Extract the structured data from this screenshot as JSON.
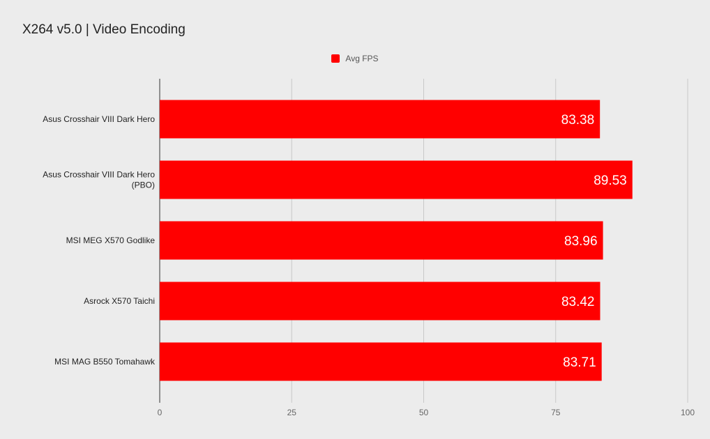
{
  "chart_data": {
    "type": "bar",
    "orientation": "horizontal",
    "title": "X264 v5.0 | Video Encoding",
    "categories": [
      [
        "Asus Crosshair VIII Dark Hero"
      ],
      [
        "Asus Crosshair VIII Dark Hero",
        "(PBO)"
      ],
      [
        "MSI MEG X570 Godlike"
      ],
      [
        "Asrock X570 Taichi"
      ],
      [
        "MSI MAG B550 Tomahawk"
      ]
    ],
    "series": [
      {
        "name": "Avg FPS",
        "color": "#ff0000",
        "values": [
          83.38,
          89.53,
          83.96,
          83.42,
          83.71
        ],
        "value_labels": [
          "83.38",
          "89.53",
          "83.96",
          "83.42",
          "83.71"
        ]
      }
    ],
    "xlim": [
      0,
      100
    ],
    "xticks": [
      0,
      25,
      50,
      75,
      100
    ],
    "xtick_labels": [
      "0",
      "25",
      "50",
      "75",
      "100"
    ],
    "grid": true,
    "legend_position": "top-center",
    "background_color": "#ececec"
  }
}
